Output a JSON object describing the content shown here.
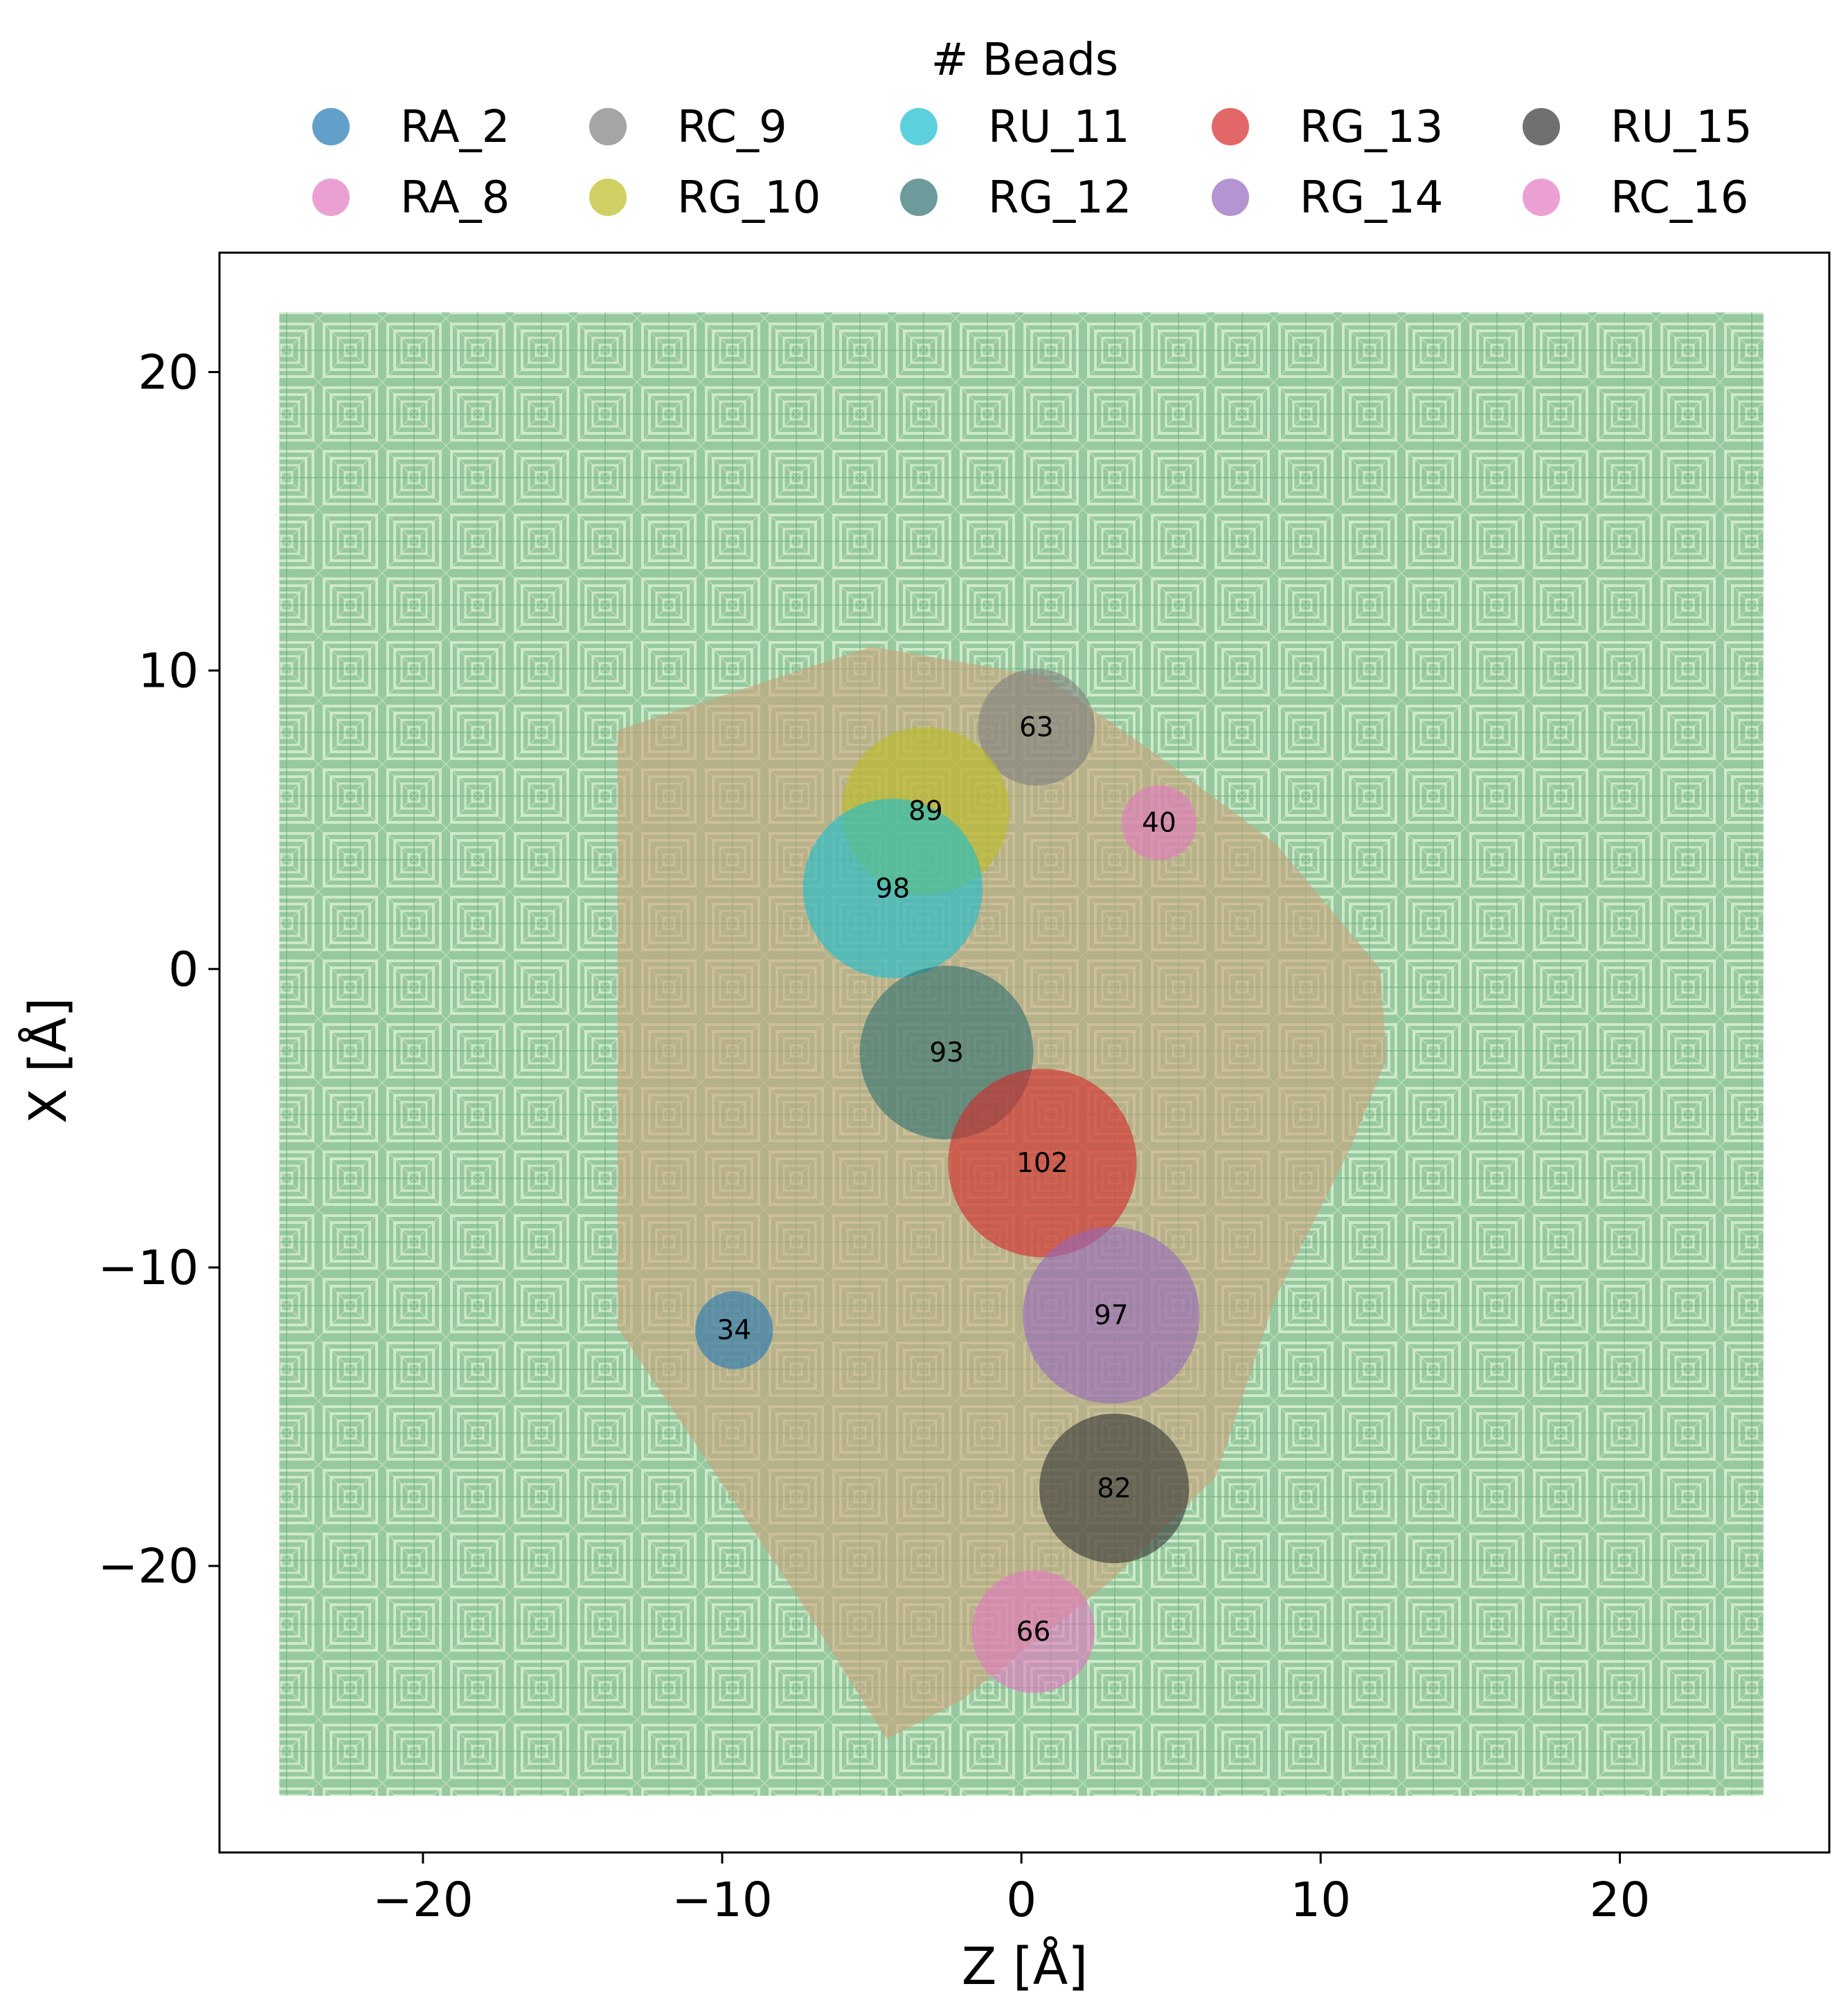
{
  "chart_data": {
    "type": "scatter",
    "xlabel": "Z [Å]",
    "ylabel": "X [Å]",
    "xlim": [
      -26.8,
      27.0
    ],
    "ylim": [
      -29.6,
      24.0
    ],
    "xticks": [
      -20,
      -10,
      0,
      10,
      20
    ],
    "yticks": [
      20,
      10,
      0,
      -10,
      -20
    ],
    "xtick_labels": [
      "−20",
      "−10",
      "0",
      "10",
      "20"
    ],
    "ytick_labels": [
      "20",
      "10",
      "0",
      "−10",
      "−20"
    ],
    "legend": {
      "title": "# Beads",
      "placement": "top-center, outside",
      "ncols": 6
    },
    "background": {
      "description_color": "#6aaf7e",
      "extent_z": [
        -24.8,
        24.8
      ],
      "extent_x": [
        -27.7,
        22.0
      ]
    },
    "hull": {
      "color": "#c9a27a",
      "points": [
        [
          -13.5,
          8.0
        ],
        [
          -5.0,
          10.8
        ],
        [
          0.8,
          9.8
        ],
        [
          4.5,
          7.2
        ],
        [
          8.5,
          4.2
        ],
        [
          12.0,
          0.0
        ],
        [
          12.2,
          -3.0
        ],
        [
          11.0,
          -6.0
        ],
        [
          8.5,
          -11.0
        ],
        [
          6.5,
          -17.0
        ],
        [
          3.0,
          -20.5
        ],
        [
          -2.0,
          -24.5
        ],
        [
          -4.5,
          -25.8
        ],
        [
          -7.5,
          -21.0
        ],
        [
          -10.5,
          -16.5
        ],
        [
          -13.5,
          -12.0
        ]
      ]
    },
    "series": [
      {
        "name": "RA_2",
        "color": "#1f77b4",
        "z": -9.6,
        "x": -12.1,
        "count": 34,
        "radius": 1.3
      },
      {
        "name": "RA_8",
        "color": "#e377c2",
        "z": null,
        "x": null,
        "count": null,
        "radius": null
      },
      {
        "name": "RC_9",
        "color": "#7f7f7f",
        "z": 0.5,
        "x": 8.1,
        "count": 63,
        "radius": 1.95
      },
      {
        "name": "RG_10",
        "color": "#bcbd22",
        "z": -3.2,
        "x": 5.3,
        "count": 89,
        "radius": 2.8
      },
      {
        "name": "RU_11",
        "color": "#17becf",
        "z": -4.3,
        "x": 2.7,
        "count": 98,
        "radius": 3.0
      },
      {
        "name": "RG_12",
        "color": "#2f6f6f",
        "z": -2.5,
        "x": -2.8,
        "count": 93,
        "radius": 2.9
      },
      {
        "name": "RG_13",
        "color": "#d62728",
        "z": 0.7,
        "x": -6.5,
        "count": 102,
        "radius": 3.15
      },
      {
        "name": "RG_14",
        "color": "#9467bd",
        "z": 3.0,
        "x": -11.6,
        "count": 97,
        "radius": 2.95
      },
      {
        "name": "RU_15",
        "color": "#333333",
        "z": 3.1,
        "x": -17.4,
        "count": 82,
        "radius": 2.5
      },
      {
        "name": "RC_16",
        "color": "#e377c2",
        "z": 0.4,
        "x": -22.2,
        "count": 66,
        "radius": 2.05
      }
    ],
    "extra_points": [
      {
        "color": "#e377c2",
        "z": 4.6,
        "x": 4.9,
        "count": 40,
        "radius": 1.25
      }
    ]
  },
  "legend_colors": [
    "#1f77b4",
    "#e377c2",
    "#7f7f7f",
    "#bcbd22",
    "#17becf",
    "#2f6f6f",
    "#d62728",
    "#9467bd",
    "#333333",
    "#e377c2"
  ]
}
